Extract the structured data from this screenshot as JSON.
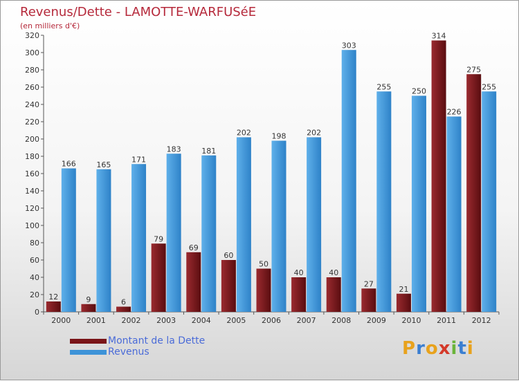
{
  "header": {
    "title": "Revenus/Dette - LAMOTTE-WARFUSéE",
    "subtitle": "(en milliers d'€)"
  },
  "colors": {
    "dette": "#7a1518",
    "revenus": "#3d93d8",
    "title": "#b5283a"
  },
  "chart_data": {
    "type": "bar",
    "categories": [
      "2000",
      "2001",
      "2002",
      "2003",
      "2004",
      "2005",
      "2006",
      "2007",
      "2008",
      "2009",
      "2010",
      "2011",
      "2012"
    ],
    "series": [
      {
        "name": "Montant de la Dette",
        "values": [
          12,
          9,
          6,
          79,
          69,
          60,
          50,
          40,
          40,
          27,
          21,
          314,
          275
        ]
      },
      {
        "name": "Revenus",
        "values": [
          166,
          165,
          171,
          183,
          181,
          202,
          198,
          202,
          303,
          255,
          250,
          226,
          255
        ]
      }
    ],
    "ylim": [
      0,
      320
    ],
    "yticks": [
      0,
      20,
      40,
      60,
      80,
      100,
      120,
      140,
      160,
      180,
      200,
      220,
      240,
      260,
      280,
      300,
      320
    ],
    "grid": false,
    "legend_position": "bottom-left"
  },
  "legend": [
    {
      "label": "Montant de la Dette",
      "color": "#7a1518"
    },
    {
      "label": "Revenus",
      "color": "#3d93d8"
    }
  ],
  "logo": {
    "letters": [
      "P",
      "r",
      "o",
      "x",
      "i",
      "t",
      "i"
    ],
    "colors": [
      "#e8a21c",
      "#3b7fd1",
      "#e8a21c",
      "#d43a2a",
      "#6ab43a",
      "#3b7fd1",
      "#e8a21c"
    ]
  }
}
